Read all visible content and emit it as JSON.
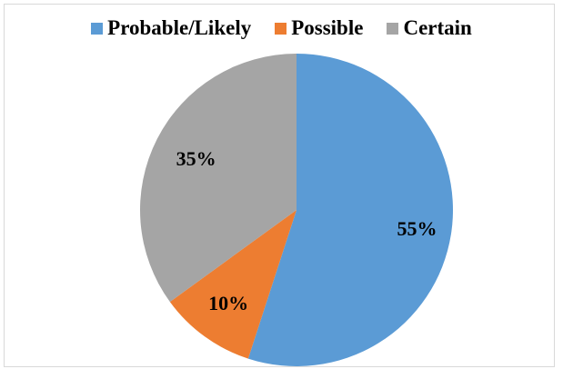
{
  "chart_data": {
    "type": "pie",
    "title": "",
    "legend_position": "top",
    "slices": [
      {
        "name": "Probable/Likely",
        "value": 55,
        "label": "55%",
        "color": "#5b9bd5"
      },
      {
        "name": "Possible",
        "value": 10,
        "label": "10%",
        "color": "#ed7d31"
      },
      {
        "name": "Certain",
        "value": 35,
        "label": "35%",
        "color": "#a5a5a5"
      }
    ]
  }
}
